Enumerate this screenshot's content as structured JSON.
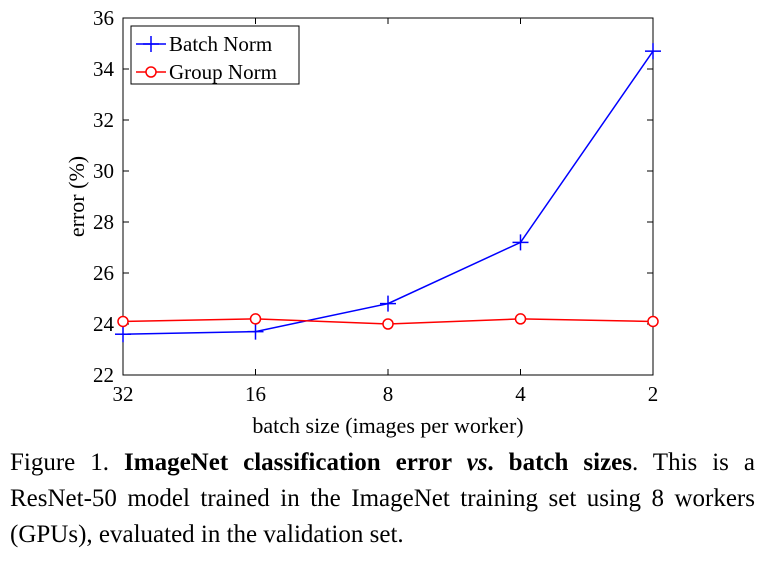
{
  "chart_data": {
    "type": "line",
    "categories": [
      "32",
      "16",
      "8",
      "4",
      "2"
    ],
    "xlabel": "batch size (images per worker)",
    "ylabel": "error (%)",
    "ylim": [
      22,
      36
    ],
    "yticks": [
      22,
      24,
      26,
      28,
      30,
      32,
      34,
      36
    ],
    "grid": false,
    "legend": "top-left",
    "series": [
      {
        "name": "Batch Norm",
        "color": "#0000ff",
        "marker": "plus",
        "values": [
          23.6,
          23.7,
          24.8,
          27.2,
          34.7
        ]
      },
      {
        "name": "Group Norm",
        "color": "#ff0000",
        "marker": "circle",
        "values": [
          24.1,
          24.2,
          24.0,
          24.2,
          24.1
        ]
      }
    ]
  },
  "caption": {
    "prefix": "Figure 1. ",
    "title_part1": "ImageNet classification error ",
    "title_vs": "vs",
    "title_part2": ". batch sizes",
    "body": ". This is a ResNet-50 model trained in the ImageNet training set using 8 workers (GPUs), evaluated in the validation set."
  }
}
